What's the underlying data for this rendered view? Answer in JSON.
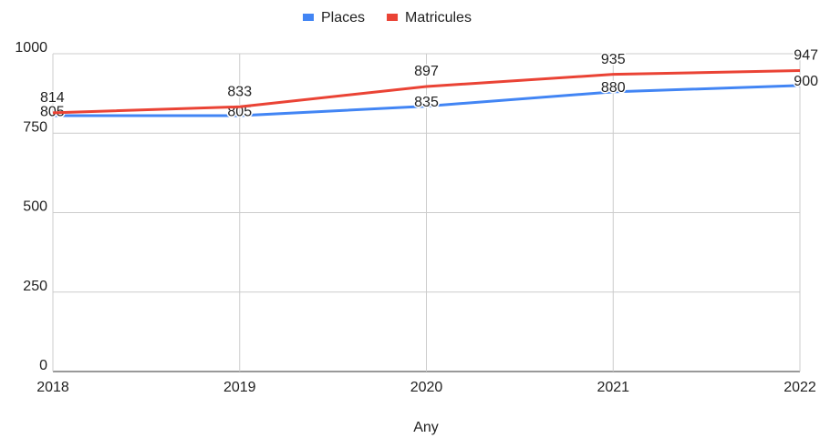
{
  "chart_data": {
    "type": "line",
    "x_label": "Any",
    "categories": [
      "2018",
      "2019",
      "2020",
      "2021",
      "2022"
    ],
    "series": [
      {
        "name": "Places",
        "color": "#4285f4",
        "values": [
          805,
          805,
          835,
          880,
          900
        ]
      },
      {
        "name": "Matricules",
        "color": "#ea4335",
        "values": [
          814,
          833,
          897,
          935,
          947
        ]
      }
    ],
    "ylim": [
      0,
      1000
    ],
    "yticks": [
      0,
      250,
      500,
      750,
      1000
    ],
    "grid": true,
    "legend": "top"
  }
}
